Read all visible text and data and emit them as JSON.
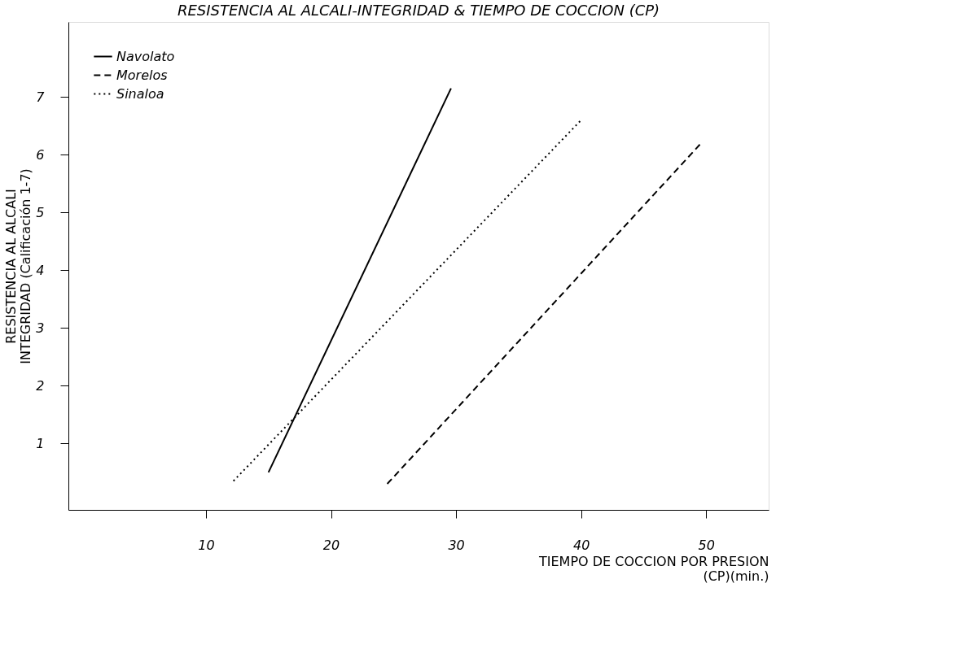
{
  "chart_data": {
    "type": "line",
    "title": "RESISTENCIA AL ALCALI-INTEGRIDAD & TIEMPO DE COCCION (CP)",
    "xlabel": "TIEMPO DE COCCION POR PRESION\n(CP)(min.)",
    "ylabel": "RESISTENCIA AL ALCALI\nINTEGRIDAD (Calificación 1-7)",
    "xlim": [
      -1,
      55
    ],
    "ylim": [
      -0.15,
      8.3
    ],
    "xticks": [
      10,
      20,
      30,
      40,
      50
    ],
    "yticks": [
      1,
      2,
      3,
      4,
      5,
      6,
      7
    ],
    "grid": false,
    "legend": "top left",
    "marker": "none",
    "series": [
      {
        "name": "Navolato",
        "color": "#000000",
        "line_style": "solid",
        "x": [
          15.0,
          29.6
        ],
        "values": [
          0.5,
          7.15
        ]
      },
      {
        "name": "Morelos",
        "color": "#000000",
        "line_style": "dashed",
        "x": [
          24.5,
          49.6
        ],
        "values": [
          0.3,
          6.2
        ]
      },
      {
        "name": "Sinaloa",
        "color": "#000000",
        "line_style": "dotted",
        "x": [
          12.2,
          40.0
        ],
        "values": [
          0.35,
          6.6
        ]
      }
    ]
  }
}
